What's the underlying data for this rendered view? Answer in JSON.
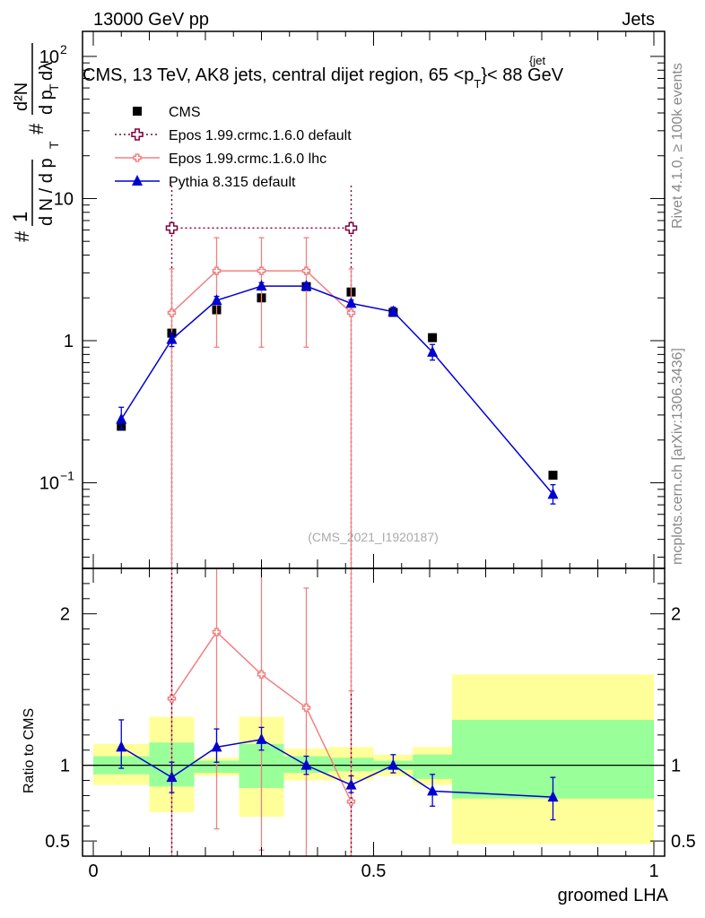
{
  "header": {
    "left": "13000 GeV pp",
    "right": "Jets"
  },
  "title": "CMS, 13 TeV, AK8 jets, central dijet region, 65 <p",
  "title_sub": "T",
  "title_sup": "{jet",
  "title_end": "}< 88 GeV",
  "side_labels": {
    "rivet": "Rivet 4.1.0, ≥ 100k events",
    "mcplots": "mcplots.cern.ch [arXiv:1306.3436]"
  },
  "watermark": "(CMS_2021_I1920187)",
  "y_axis_main": {
    "num_hash": "#",
    "num_one": "1",
    "den": "d N / d p",
    "den_sub": "T",
    "frac2_num": "d²N",
    "frac2_den": "d p",
    "frac2_den_sub": "T",
    "frac2_den_end": " dλ",
    "hash2": "#"
  },
  "y_axis_ratio": "Ratio to CMS",
  "x_axis": "groomed LHA",
  "legend": [
    {
      "name": "CMS",
      "color": "#000000"
    },
    {
      "name": "Epos 1.99.crmc.1.6.0 default",
      "color": "#800040"
    },
    {
      "name": "Epos 1.99.crmc.1.6.0 lhc",
      "color": "#f08080"
    },
    {
      "name": "Pythia 8.315 default",
      "color": "#0000d0"
    }
  ],
  "chart_data": {
    "type": "scatter",
    "x_range": [
      0,
      1
    ],
    "y_range_main": [
      0.025,
      150
    ],
    "y_scale_main": "log",
    "y_range_ratio": [
      0.4,
      2.3
    ],
    "x_ticks": [
      {
        "v": 0,
        "label": "0"
      },
      {
        "v": 0.5,
        "label": "0.5"
      },
      {
        "v": 1,
        "label": "1"
      }
    ],
    "y_ticks_main": [
      {
        "v": 0.1,
        "label": "10",
        "sup": "−1"
      },
      {
        "v": 1,
        "label": "1",
        "sup": ""
      },
      {
        "v": 10,
        "label": "10",
        "sup": ""
      },
      {
        "v": 100,
        "label": "10",
        "sup": "2"
      }
    ],
    "y_ticks_ratio": [
      {
        "v": 0.5,
        "label": "0.5"
      },
      {
        "v": 1,
        "label": "1"
      },
      {
        "v": 2,
        "label": "2"
      }
    ],
    "bins": [
      {
        "lo": 0.0,
        "hi": 0.1,
        "ratio_inner": [
          0.94,
          1.06
        ],
        "ratio_outer": [
          0.87,
          1.14
        ]
      },
      {
        "lo": 0.1,
        "hi": 0.18,
        "ratio_inner": [
          0.86,
          1.15
        ],
        "ratio_outer": [
          0.69,
          1.32
        ]
      },
      {
        "lo": 0.18,
        "hi": 0.26,
        "ratio_inner": [
          0.95,
          1.03
        ],
        "ratio_outer": [
          0.93,
          1.05
        ]
      },
      {
        "lo": 0.26,
        "hi": 0.34,
        "ratio_inner": [
          0.85,
          1.14
        ],
        "ratio_outer": [
          0.66,
          1.32
        ]
      },
      {
        "lo": 0.34,
        "hi": 0.42,
        "ratio_inner": [
          0.95,
          1.06
        ],
        "ratio_outer": [
          0.9,
          1.11
        ]
      },
      {
        "lo": 0.42,
        "hi": 0.5,
        "ratio_inner": [
          0.96,
          1.05
        ],
        "ratio_outer": [
          0.9,
          1.12
        ]
      },
      {
        "lo": 0.5,
        "hi": 0.57,
        "ratio_inner": [
          0.97,
          1.03
        ],
        "ratio_outer": [
          0.93,
          1.07
        ]
      },
      {
        "lo": 0.57,
        "hi": 0.64,
        "ratio_inner": [
          0.91,
          1.07
        ],
        "ratio_outer": [
          0.87,
          1.12
        ]
      },
      {
        "lo": 0.64,
        "hi": 1.0,
        "ratio_inner": [
          0.78,
          1.3
        ],
        "ratio_outer": [
          0.48,
          1.6
        ]
      }
    ],
    "series": [
      {
        "name": "CMS",
        "marker": "square",
        "color": "#000000",
        "x": [
          0.05,
          0.14,
          0.22,
          0.3,
          0.38,
          0.46,
          0.535,
          0.605,
          0.82
        ],
        "y": [
          0.25,
          1.13,
          1.65,
          2.0,
          2.4,
          2.2,
          1.58,
          1.05,
          0.113
        ]
      },
      {
        "name": "Epos 1.99.crmc.1.6.0 default",
        "marker": "open-cross",
        "color": "#800040",
        "dotted": true,
        "x": [
          0.14,
          0.46
        ],
        "xlo": [
          0.14,
          0.46
        ],
        "xhi": [
          0.46,
          0.46
        ],
        "y": [
          6.2,
          6.2
        ],
        "ylo": [
          0.001,
          0.001
        ],
        "yhi": [
          12.5,
          12.5
        ]
      },
      {
        "name": "Epos 1.99.crmc.1.6.0 lhc",
        "marker": "open-cross-small",
        "color": "#f08080",
        "x": [
          0.14,
          0.22,
          0.3,
          0.38,
          0.46
        ],
        "y": [
          1.57,
          3.1,
          3.1,
          3.1,
          1.57
        ],
        "ylo": [
          0.001,
          0.9,
          0.9,
          0.9,
          0.001
        ],
        "yhi": [
          3.2,
          5.3,
          5.3,
          5.3,
          3.2
        ],
        "ratio": [
          1.44,
          1.88,
          1.6,
          1.38,
          0.76
        ],
        "ratio_lo": [
          0.01,
          0.58,
          0.44,
          0.01,
          0.01
        ],
        "ratio_hi": [
          2.5,
          2.5,
          2.5,
          2.17,
          1.49
        ]
      },
      {
        "name": "Pythia 8.315 default",
        "marker": "triangle",
        "color": "#0000d0",
        "x": [
          0.05,
          0.14,
          0.22,
          0.3,
          0.38,
          0.46,
          0.535,
          0.605,
          0.82
        ],
        "y": [
          0.28,
          1.02,
          1.92,
          2.42,
          2.42,
          1.83,
          1.6,
          0.83,
          0.083
        ],
        "ylo": [
          0.24,
          0.91,
          1.82,
          2.3,
          2.3,
          1.75,
          1.5,
          0.73,
          0.071
        ],
        "yhi": [
          0.34,
          1.14,
          2.05,
          2.56,
          2.56,
          1.93,
          1.72,
          0.94,
          0.097
        ],
        "ratio": [
          1.12,
          0.92,
          1.12,
          1.17,
          1.0,
          0.87,
          1.0,
          0.83,
          0.79
        ],
        "ratio_lo": [
          0.98,
          0.82,
          1.02,
          1.1,
          0.94,
          0.82,
          0.95,
          0.73,
          0.64
        ],
        "ratio_hi": [
          1.3,
          1.02,
          1.24,
          1.25,
          1.06,
          0.93,
          1.07,
          0.94,
          0.92
        ]
      }
    ]
  }
}
